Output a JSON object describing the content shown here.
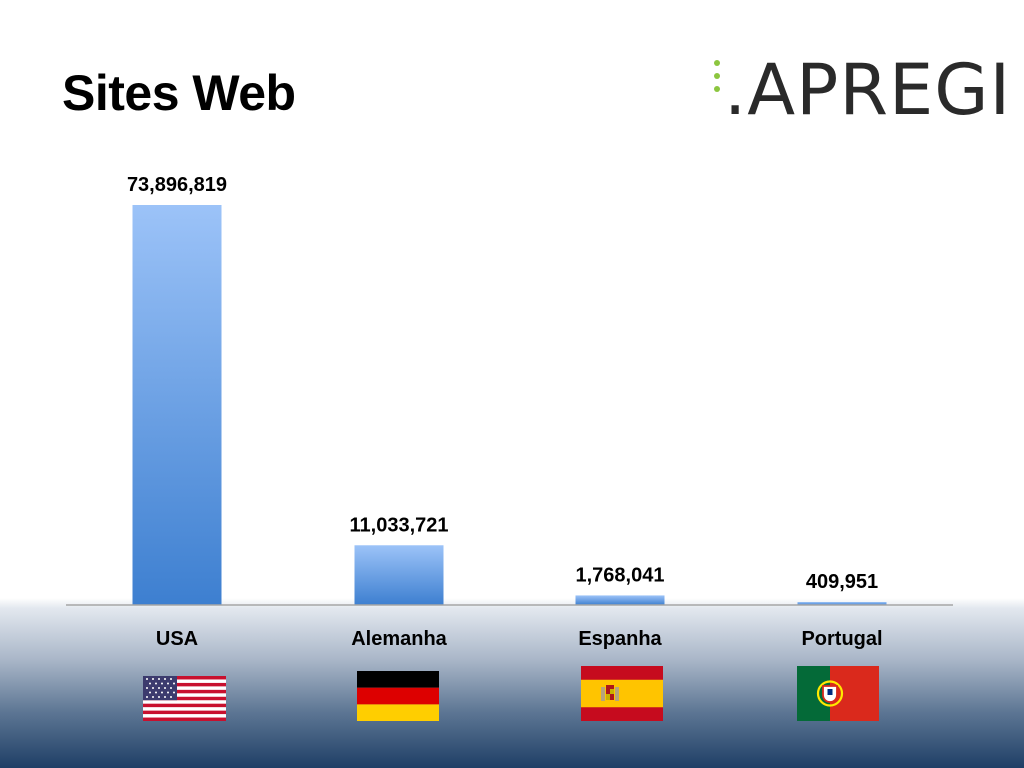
{
  "slide": {
    "title": "Sites Web",
    "logo_text": ".APREGI",
    "logo_dot_color": "#8cc63f"
  },
  "chart_data": {
    "type": "bar",
    "categories": [
      "USA",
      "Alemanha",
      "Espanha",
      "Portugal"
    ],
    "values": [
      73896819,
      11033721,
      1768041,
      409951
    ],
    "data_labels": [
      "73,896,819",
      "11,033,721",
      "1,768,041",
      "409,951"
    ],
    "ylim": [
      0,
      73896819
    ],
    "grid": false,
    "legend": "none",
    "bar_color_top": "#9cc3f8",
    "bar_color_bottom": "#3d7fd0"
  },
  "flags": [
    {
      "country": "USA",
      "icon": "usa-flag-icon"
    },
    {
      "country": "Alemanha",
      "icon": "germany-flag-icon"
    },
    {
      "country": "Espanha",
      "icon": "spain-flag-icon"
    },
    {
      "country": "Portugal",
      "icon": "portugal-flag-icon"
    }
  ]
}
